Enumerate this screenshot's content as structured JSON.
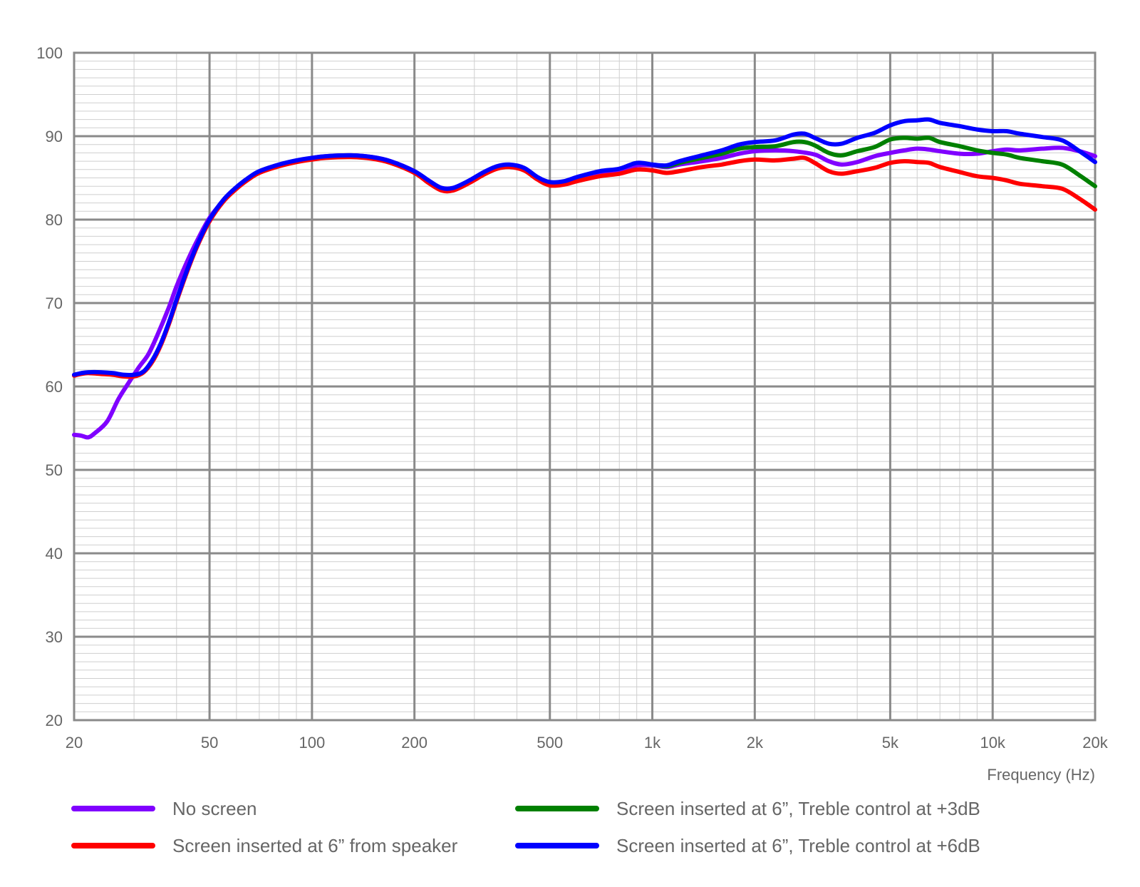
{
  "chart_data": {
    "type": "line",
    "title": "",
    "xlabel": "Frequency (Hz)",
    "ylabel": "",
    "x_scale": "log",
    "xlim": [
      20,
      20000
    ],
    "ylim": [
      20,
      100
    ],
    "grid": true,
    "legend_position": "bottom",
    "x_ticks": [
      {
        "value": 20,
        "label": "20"
      },
      {
        "value": 50,
        "label": "50"
      },
      {
        "value": 100,
        "label": "100"
      },
      {
        "value": 200,
        "label": "200"
      },
      {
        "value": 500,
        "label": "500"
      },
      {
        "value": 1000,
        "label": "1k"
      },
      {
        "value": 2000,
        "label": "2k"
      },
      {
        "value": 5000,
        "label": "5k"
      },
      {
        "value": 10000,
        "label": "10k"
      },
      {
        "value": 20000,
        "label": "20k"
      }
    ],
    "y_ticks": [
      {
        "value": 100,
        "label": "100"
      },
      {
        "value": 90,
        "label": "90"
      },
      {
        "value": 80,
        "label": "80"
      },
      {
        "value": 70,
        "label": "70"
      },
      {
        "value": 60,
        "label": "60"
      },
      {
        "value": 50,
        "label": "50"
      },
      {
        "value": 40,
        "label": "40"
      },
      {
        "value": 30,
        "label": "30"
      },
      {
        "value": 20,
        "label": "20"
      }
    ],
    "series": [
      {
        "name": "No screen",
        "color": "#8000ff",
        "points": [
          [
            20,
            54.2
          ],
          [
            21,
            54.1
          ],
          [
            22,
            53.9
          ],
          [
            23,
            54.4
          ],
          [
            25,
            55.8
          ],
          [
            27,
            58.5
          ],
          [
            29,
            60.5
          ],
          [
            31,
            62.3
          ],
          [
            33,
            63.8
          ],
          [
            35,
            66.0
          ],
          [
            38,
            69.5
          ],
          [
            40,
            72.0
          ],
          [
            43,
            75.0
          ],
          [
            46,
            77.5
          ],
          [
            50,
            80.2
          ],
          [
            55,
            82.3
          ],
          [
            60,
            83.8
          ],
          [
            65,
            84.9
          ],
          [
            70,
            85.7
          ],
          [
            80,
            86.5
          ],
          [
            90,
            87.0
          ],
          [
            100,
            87.4
          ],
          [
            110,
            87.6
          ],
          [
            130,
            87.7
          ],
          [
            150,
            87.5
          ],
          [
            170,
            87.0
          ],
          [
            200,
            85.8
          ],
          [
            220,
            84.6
          ],
          [
            240,
            83.8
          ],
          [
            260,
            83.8
          ],
          [
            290,
            84.6
          ],
          [
            320,
            85.6
          ],
          [
            350,
            86.3
          ],
          [
            380,
            86.5
          ],
          [
            420,
            86.1
          ],
          [
            460,
            85.0
          ],
          [
            500,
            84.4
          ],
          [
            550,
            84.5
          ],
          [
            600,
            85.0
          ],
          [
            700,
            85.6
          ],
          [
            800,
            85.9
          ],
          [
            900,
            86.5
          ],
          [
            1000,
            86.5
          ],
          [
            1100,
            86.3
          ],
          [
            1200,
            86.6
          ],
          [
            1400,
            87.0
          ],
          [
            1600,
            87.4
          ],
          [
            1800,
            87.9
          ],
          [
            2000,
            88.2
          ],
          [
            2300,
            88.3
          ],
          [
            2600,
            88.2
          ],
          [
            3000,
            87.8
          ],
          [
            3300,
            87.0
          ],
          [
            3600,
            86.6
          ],
          [
            4000,
            86.9
          ],
          [
            4500,
            87.6
          ],
          [
            5000,
            88.0
          ],
          [
            5500,
            88.3
          ],
          [
            6000,
            88.5
          ],
          [
            6500,
            88.4
          ],
          [
            7000,
            88.2
          ],
          [
            8000,
            87.9
          ],
          [
            9000,
            87.9
          ],
          [
            10000,
            88.2
          ],
          [
            11000,
            88.4
          ],
          [
            12000,
            88.3
          ],
          [
            14000,
            88.5
          ],
          [
            16000,
            88.6
          ],
          [
            18000,
            88.2
          ],
          [
            20000,
            87.6
          ]
        ]
      },
      {
        "name": "Screen inserted at 6” from speaker",
        "color": "#ff0000",
        "points": [
          [
            20,
            61.3
          ],
          [
            21,
            61.5
          ],
          [
            22,
            61.6
          ],
          [
            24,
            61.5
          ],
          [
            26,
            61.4
          ],
          [
            28,
            61.2
          ],
          [
            30,
            61.2
          ],
          [
            32,
            61.7
          ],
          [
            34,
            63.0
          ],
          [
            36,
            65.0
          ],
          [
            38,
            67.5
          ],
          [
            40,
            70.2
          ],
          [
            43,
            73.8
          ],
          [
            46,
            76.8
          ],
          [
            50,
            79.8
          ],
          [
            55,
            82.2
          ],
          [
            60,
            83.7
          ],
          [
            65,
            84.8
          ],
          [
            70,
            85.6
          ],
          [
            80,
            86.4
          ],
          [
            90,
            86.9
          ],
          [
            100,
            87.2
          ],
          [
            110,
            87.4
          ],
          [
            130,
            87.5
          ],
          [
            150,
            87.3
          ],
          [
            170,
            86.8
          ],
          [
            200,
            85.6
          ],
          [
            220,
            84.4
          ],
          [
            240,
            83.5
          ],
          [
            260,
            83.5
          ],
          [
            290,
            84.4
          ],
          [
            320,
            85.4
          ],
          [
            350,
            86.1
          ],
          [
            380,
            86.3
          ],
          [
            420,
            85.9
          ],
          [
            460,
            84.8
          ],
          [
            500,
            84.1
          ],
          [
            550,
            84.2
          ],
          [
            600,
            84.6
          ],
          [
            700,
            85.2
          ],
          [
            800,
            85.5
          ],
          [
            900,
            86.0
          ],
          [
            1000,
            85.9
          ],
          [
            1100,
            85.6
          ],
          [
            1200,
            85.8
          ],
          [
            1400,
            86.3
          ],
          [
            1600,
            86.6
          ],
          [
            1800,
            87.0
          ],
          [
            2000,
            87.2
          ],
          [
            2300,
            87.1
          ],
          [
            2600,
            87.3
          ],
          [
            2800,
            87.4
          ],
          [
            3000,
            86.8
          ],
          [
            3300,
            85.8
          ],
          [
            3600,
            85.5
          ],
          [
            4000,
            85.8
          ],
          [
            4500,
            86.2
          ],
          [
            5000,
            86.8
          ],
          [
            5500,
            87.0
          ],
          [
            6000,
            86.9
          ],
          [
            6500,
            86.8
          ],
          [
            7000,
            86.3
          ],
          [
            8000,
            85.7
          ],
          [
            9000,
            85.2
          ],
          [
            10000,
            85.0
          ],
          [
            11000,
            84.7
          ],
          [
            12000,
            84.3
          ],
          [
            14000,
            84.0
          ],
          [
            16000,
            83.7
          ],
          [
            18000,
            82.5
          ],
          [
            20000,
            81.2
          ]
        ]
      },
      {
        "name": "Screen inserted at 6”, Treble control at +3dB",
        "color": "#008000",
        "points": [
          [
            1000,
            86.6
          ],
          [
            1100,
            86.4
          ],
          [
            1200,
            86.8
          ],
          [
            1400,
            87.4
          ],
          [
            1600,
            87.9
          ],
          [
            1800,
            88.5
          ],
          [
            2000,
            88.7
          ],
          [
            2300,
            88.8
          ],
          [
            2600,
            89.3
          ],
          [
            2800,
            89.3
          ],
          [
            3000,
            88.9
          ],
          [
            3300,
            88.0
          ],
          [
            3600,
            87.7
          ],
          [
            4000,
            88.2
          ],
          [
            4500,
            88.7
          ],
          [
            5000,
            89.6
          ],
          [
            5500,
            89.8
          ],
          [
            6000,
            89.7
          ],
          [
            6500,
            89.8
          ],
          [
            7000,
            89.3
          ],
          [
            8000,
            88.8
          ],
          [
            9000,
            88.3
          ],
          [
            10000,
            88.0
          ],
          [
            11000,
            87.8
          ],
          [
            12000,
            87.4
          ],
          [
            14000,
            87.0
          ],
          [
            16000,
            86.6
          ],
          [
            18000,
            85.3
          ],
          [
            20000,
            84.0
          ]
        ]
      },
      {
        "name": "Screen inserted at 6”, Treble control at +6dB",
        "color": "#0000ff",
        "points": [
          [
            20,
            61.4
          ],
          [
            21,
            61.6
          ],
          [
            22,
            61.7
          ],
          [
            24,
            61.7
          ],
          [
            26,
            61.6
          ],
          [
            28,
            61.4
          ],
          [
            30,
            61.4
          ],
          [
            32,
            61.8
          ],
          [
            34,
            63.2
          ],
          [
            36,
            65.2
          ],
          [
            38,
            67.7
          ],
          [
            40,
            70.4
          ],
          [
            43,
            74.0
          ],
          [
            46,
            77.0
          ],
          [
            50,
            80.0
          ],
          [
            55,
            82.4
          ],
          [
            60,
            83.9
          ],
          [
            65,
            85.0
          ],
          [
            70,
            85.8
          ],
          [
            80,
            86.6
          ],
          [
            90,
            87.1
          ],
          [
            100,
            87.4
          ],
          [
            110,
            87.6
          ],
          [
            130,
            87.7
          ],
          [
            150,
            87.5
          ],
          [
            170,
            87.0
          ],
          [
            200,
            85.8
          ],
          [
            220,
            84.7
          ],
          [
            240,
            83.8
          ],
          [
            260,
            83.8
          ],
          [
            290,
            84.7
          ],
          [
            320,
            85.7
          ],
          [
            350,
            86.4
          ],
          [
            380,
            86.6
          ],
          [
            420,
            86.2
          ],
          [
            460,
            85.1
          ],
          [
            500,
            84.5
          ],
          [
            550,
            84.6
          ],
          [
            600,
            85.1
          ],
          [
            700,
            85.8
          ],
          [
            800,
            86.1
          ],
          [
            900,
            86.8
          ],
          [
            1000,
            86.6
          ],
          [
            1100,
            86.5
          ],
          [
            1200,
            87.0
          ],
          [
            1400,
            87.7
          ],
          [
            1600,
            88.3
          ],
          [
            1800,
            89.0
          ],
          [
            2000,
            89.3
          ],
          [
            2300,
            89.5
          ],
          [
            2600,
            90.2
          ],
          [
            2800,
            90.3
          ],
          [
            3000,
            89.8
          ],
          [
            3300,
            89.1
          ],
          [
            3600,
            89.1
          ],
          [
            4000,
            89.8
          ],
          [
            4500,
            90.4
          ],
          [
            5000,
            91.3
          ],
          [
            5500,
            91.8
          ],
          [
            6000,
            91.9
          ],
          [
            6500,
            92.0
          ],
          [
            7000,
            91.6
          ],
          [
            8000,
            91.2
          ],
          [
            9000,
            90.8
          ],
          [
            10000,
            90.6
          ],
          [
            11000,
            90.6
          ],
          [
            12000,
            90.3
          ],
          [
            14000,
            89.9
          ],
          [
            16000,
            89.5
          ],
          [
            18000,
            88.2
          ],
          [
            20000,
            86.9
          ]
        ]
      }
    ]
  }
}
